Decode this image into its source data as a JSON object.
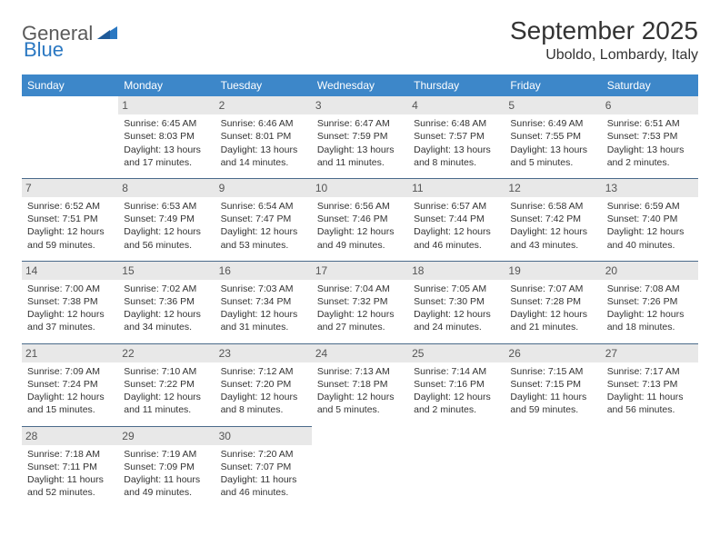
{
  "brand": {
    "name_part1": "General",
    "name_part2": "Blue",
    "text_color_gray": "#5a5a5a",
    "text_color_blue": "#2b78c2",
    "mark_color": "#2b78c2"
  },
  "header": {
    "month_title": "September 2025",
    "location": "Uboldo, Lombardy, Italy"
  },
  "colors": {
    "header_row_bg": "#3d87c9",
    "header_row_text": "#ffffff",
    "daynum_bg": "#e8e8e8",
    "daynum_text": "#555555",
    "cell_border": "#4a6a8a",
    "body_text": "#333333",
    "page_bg": "#ffffff"
  },
  "typography": {
    "month_title_fontsize": 28,
    "location_fontsize": 16,
    "weekday_fontsize": 12,
    "daynum_fontsize": 12,
    "body_fontsize": 10.5,
    "logo_fontsize": 22
  },
  "weekdays": [
    "Sunday",
    "Monday",
    "Tuesday",
    "Wednesday",
    "Thursday",
    "Friday",
    "Saturday"
  ],
  "weeks": [
    [
      {
        "empty": true
      },
      {
        "day": "1",
        "sunrise": "Sunrise: 6:45 AM",
        "sunset": "Sunset: 8:03 PM",
        "daylight1": "Daylight: 13 hours",
        "daylight2": "and 17 minutes."
      },
      {
        "day": "2",
        "sunrise": "Sunrise: 6:46 AM",
        "sunset": "Sunset: 8:01 PM",
        "daylight1": "Daylight: 13 hours",
        "daylight2": "and 14 minutes."
      },
      {
        "day": "3",
        "sunrise": "Sunrise: 6:47 AM",
        "sunset": "Sunset: 7:59 PM",
        "daylight1": "Daylight: 13 hours",
        "daylight2": "and 11 minutes."
      },
      {
        "day": "4",
        "sunrise": "Sunrise: 6:48 AM",
        "sunset": "Sunset: 7:57 PM",
        "daylight1": "Daylight: 13 hours",
        "daylight2": "and 8 minutes."
      },
      {
        "day": "5",
        "sunrise": "Sunrise: 6:49 AM",
        "sunset": "Sunset: 7:55 PM",
        "daylight1": "Daylight: 13 hours",
        "daylight2": "and 5 minutes."
      },
      {
        "day": "6",
        "sunrise": "Sunrise: 6:51 AM",
        "sunset": "Sunset: 7:53 PM",
        "daylight1": "Daylight: 13 hours",
        "daylight2": "and 2 minutes."
      }
    ],
    [
      {
        "day": "7",
        "sunrise": "Sunrise: 6:52 AM",
        "sunset": "Sunset: 7:51 PM",
        "daylight1": "Daylight: 12 hours",
        "daylight2": "and 59 minutes."
      },
      {
        "day": "8",
        "sunrise": "Sunrise: 6:53 AM",
        "sunset": "Sunset: 7:49 PM",
        "daylight1": "Daylight: 12 hours",
        "daylight2": "and 56 minutes."
      },
      {
        "day": "9",
        "sunrise": "Sunrise: 6:54 AM",
        "sunset": "Sunset: 7:47 PM",
        "daylight1": "Daylight: 12 hours",
        "daylight2": "and 53 minutes."
      },
      {
        "day": "10",
        "sunrise": "Sunrise: 6:56 AM",
        "sunset": "Sunset: 7:46 PM",
        "daylight1": "Daylight: 12 hours",
        "daylight2": "and 49 minutes."
      },
      {
        "day": "11",
        "sunrise": "Sunrise: 6:57 AM",
        "sunset": "Sunset: 7:44 PM",
        "daylight1": "Daylight: 12 hours",
        "daylight2": "and 46 minutes."
      },
      {
        "day": "12",
        "sunrise": "Sunrise: 6:58 AM",
        "sunset": "Sunset: 7:42 PM",
        "daylight1": "Daylight: 12 hours",
        "daylight2": "and 43 minutes."
      },
      {
        "day": "13",
        "sunrise": "Sunrise: 6:59 AM",
        "sunset": "Sunset: 7:40 PM",
        "daylight1": "Daylight: 12 hours",
        "daylight2": "and 40 minutes."
      }
    ],
    [
      {
        "day": "14",
        "sunrise": "Sunrise: 7:00 AM",
        "sunset": "Sunset: 7:38 PM",
        "daylight1": "Daylight: 12 hours",
        "daylight2": "and 37 minutes."
      },
      {
        "day": "15",
        "sunrise": "Sunrise: 7:02 AM",
        "sunset": "Sunset: 7:36 PM",
        "daylight1": "Daylight: 12 hours",
        "daylight2": "and 34 minutes."
      },
      {
        "day": "16",
        "sunrise": "Sunrise: 7:03 AM",
        "sunset": "Sunset: 7:34 PM",
        "daylight1": "Daylight: 12 hours",
        "daylight2": "and 31 minutes."
      },
      {
        "day": "17",
        "sunrise": "Sunrise: 7:04 AM",
        "sunset": "Sunset: 7:32 PM",
        "daylight1": "Daylight: 12 hours",
        "daylight2": "and 27 minutes."
      },
      {
        "day": "18",
        "sunrise": "Sunrise: 7:05 AM",
        "sunset": "Sunset: 7:30 PM",
        "daylight1": "Daylight: 12 hours",
        "daylight2": "and 24 minutes."
      },
      {
        "day": "19",
        "sunrise": "Sunrise: 7:07 AM",
        "sunset": "Sunset: 7:28 PM",
        "daylight1": "Daylight: 12 hours",
        "daylight2": "and 21 minutes."
      },
      {
        "day": "20",
        "sunrise": "Sunrise: 7:08 AM",
        "sunset": "Sunset: 7:26 PM",
        "daylight1": "Daylight: 12 hours",
        "daylight2": "and 18 minutes."
      }
    ],
    [
      {
        "day": "21",
        "sunrise": "Sunrise: 7:09 AM",
        "sunset": "Sunset: 7:24 PM",
        "daylight1": "Daylight: 12 hours",
        "daylight2": "and 15 minutes."
      },
      {
        "day": "22",
        "sunrise": "Sunrise: 7:10 AM",
        "sunset": "Sunset: 7:22 PM",
        "daylight1": "Daylight: 12 hours",
        "daylight2": "and 11 minutes."
      },
      {
        "day": "23",
        "sunrise": "Sunrise: 7:12 AM",
        "sunset": "Sunset: 7:20 PM",
        "daylight1": "Daylight: 12 hours",
        "daylight2": "and 8 minutes."
      },
      {
        "day": "24",
        "sunrise": "Sunrise: 7:13 AM",
        "sunset": "Sunset: 7:18 PM",
        "daylight1": "Daylight: 12 hours",
        "daylight2": "and 5 minutes."
      },
      {
        "day": "25",
        "sunrise": "Sunrise: 7:14 AM",
        "sunset": "Sunset: 7:16 PM",
        "daylight1": "Daylight: 12 hours",
        "daylight2": "and 2 minutes."
      },
      {
        "day": "26",
        "sunrise": "Sunrise: 7:15 AM",
        "sunset": "Sunset: 7:15 PM",
        "daylight1": "Daylight: 11 hours",
        "daylight2": "and 59 minutes."
      },
      {
        "day": "27",
        "sunrise": "Sunrise: 7:17 AM",
        "sunset": "Sunset: 7:13 PM",
        "daylight1": "Daylight: 11 hours",
        "daylight2": "and 56 minutes."
      }
    ],
    [
      {
        "day": "28",
        "sunrise": "Sunrise: 7:18 AM",
        "sunset": "Sunset: 7:11 PM",
        "daylight1": "Daylight: 11 hours",
        "daylight2": "and 52 minutes."
      },
      {
        "day": "29",
        "sunrise": "Sunrise: 7:19 AM",
        "sunset": "Sunset: 7:09 PM",
        "daylight1": "Daylight: 11 hours",
        "daylight2": "and 49 minutes."
      },
      {
        "day": "30",
        "sunrise": "Sunrise: 7:20 AM",
        "sunset": "Sunset: 7:07 PM",
        "daylight1": "Daylight: 11 hours",
        "daylight2": "and 46 minutes."
      },
      {
        "empty": true
      },
      {
        "empty": true
      },
      {
        "empty": true
      },
      {
        "empty": true
      }
    ]
  ]
}
